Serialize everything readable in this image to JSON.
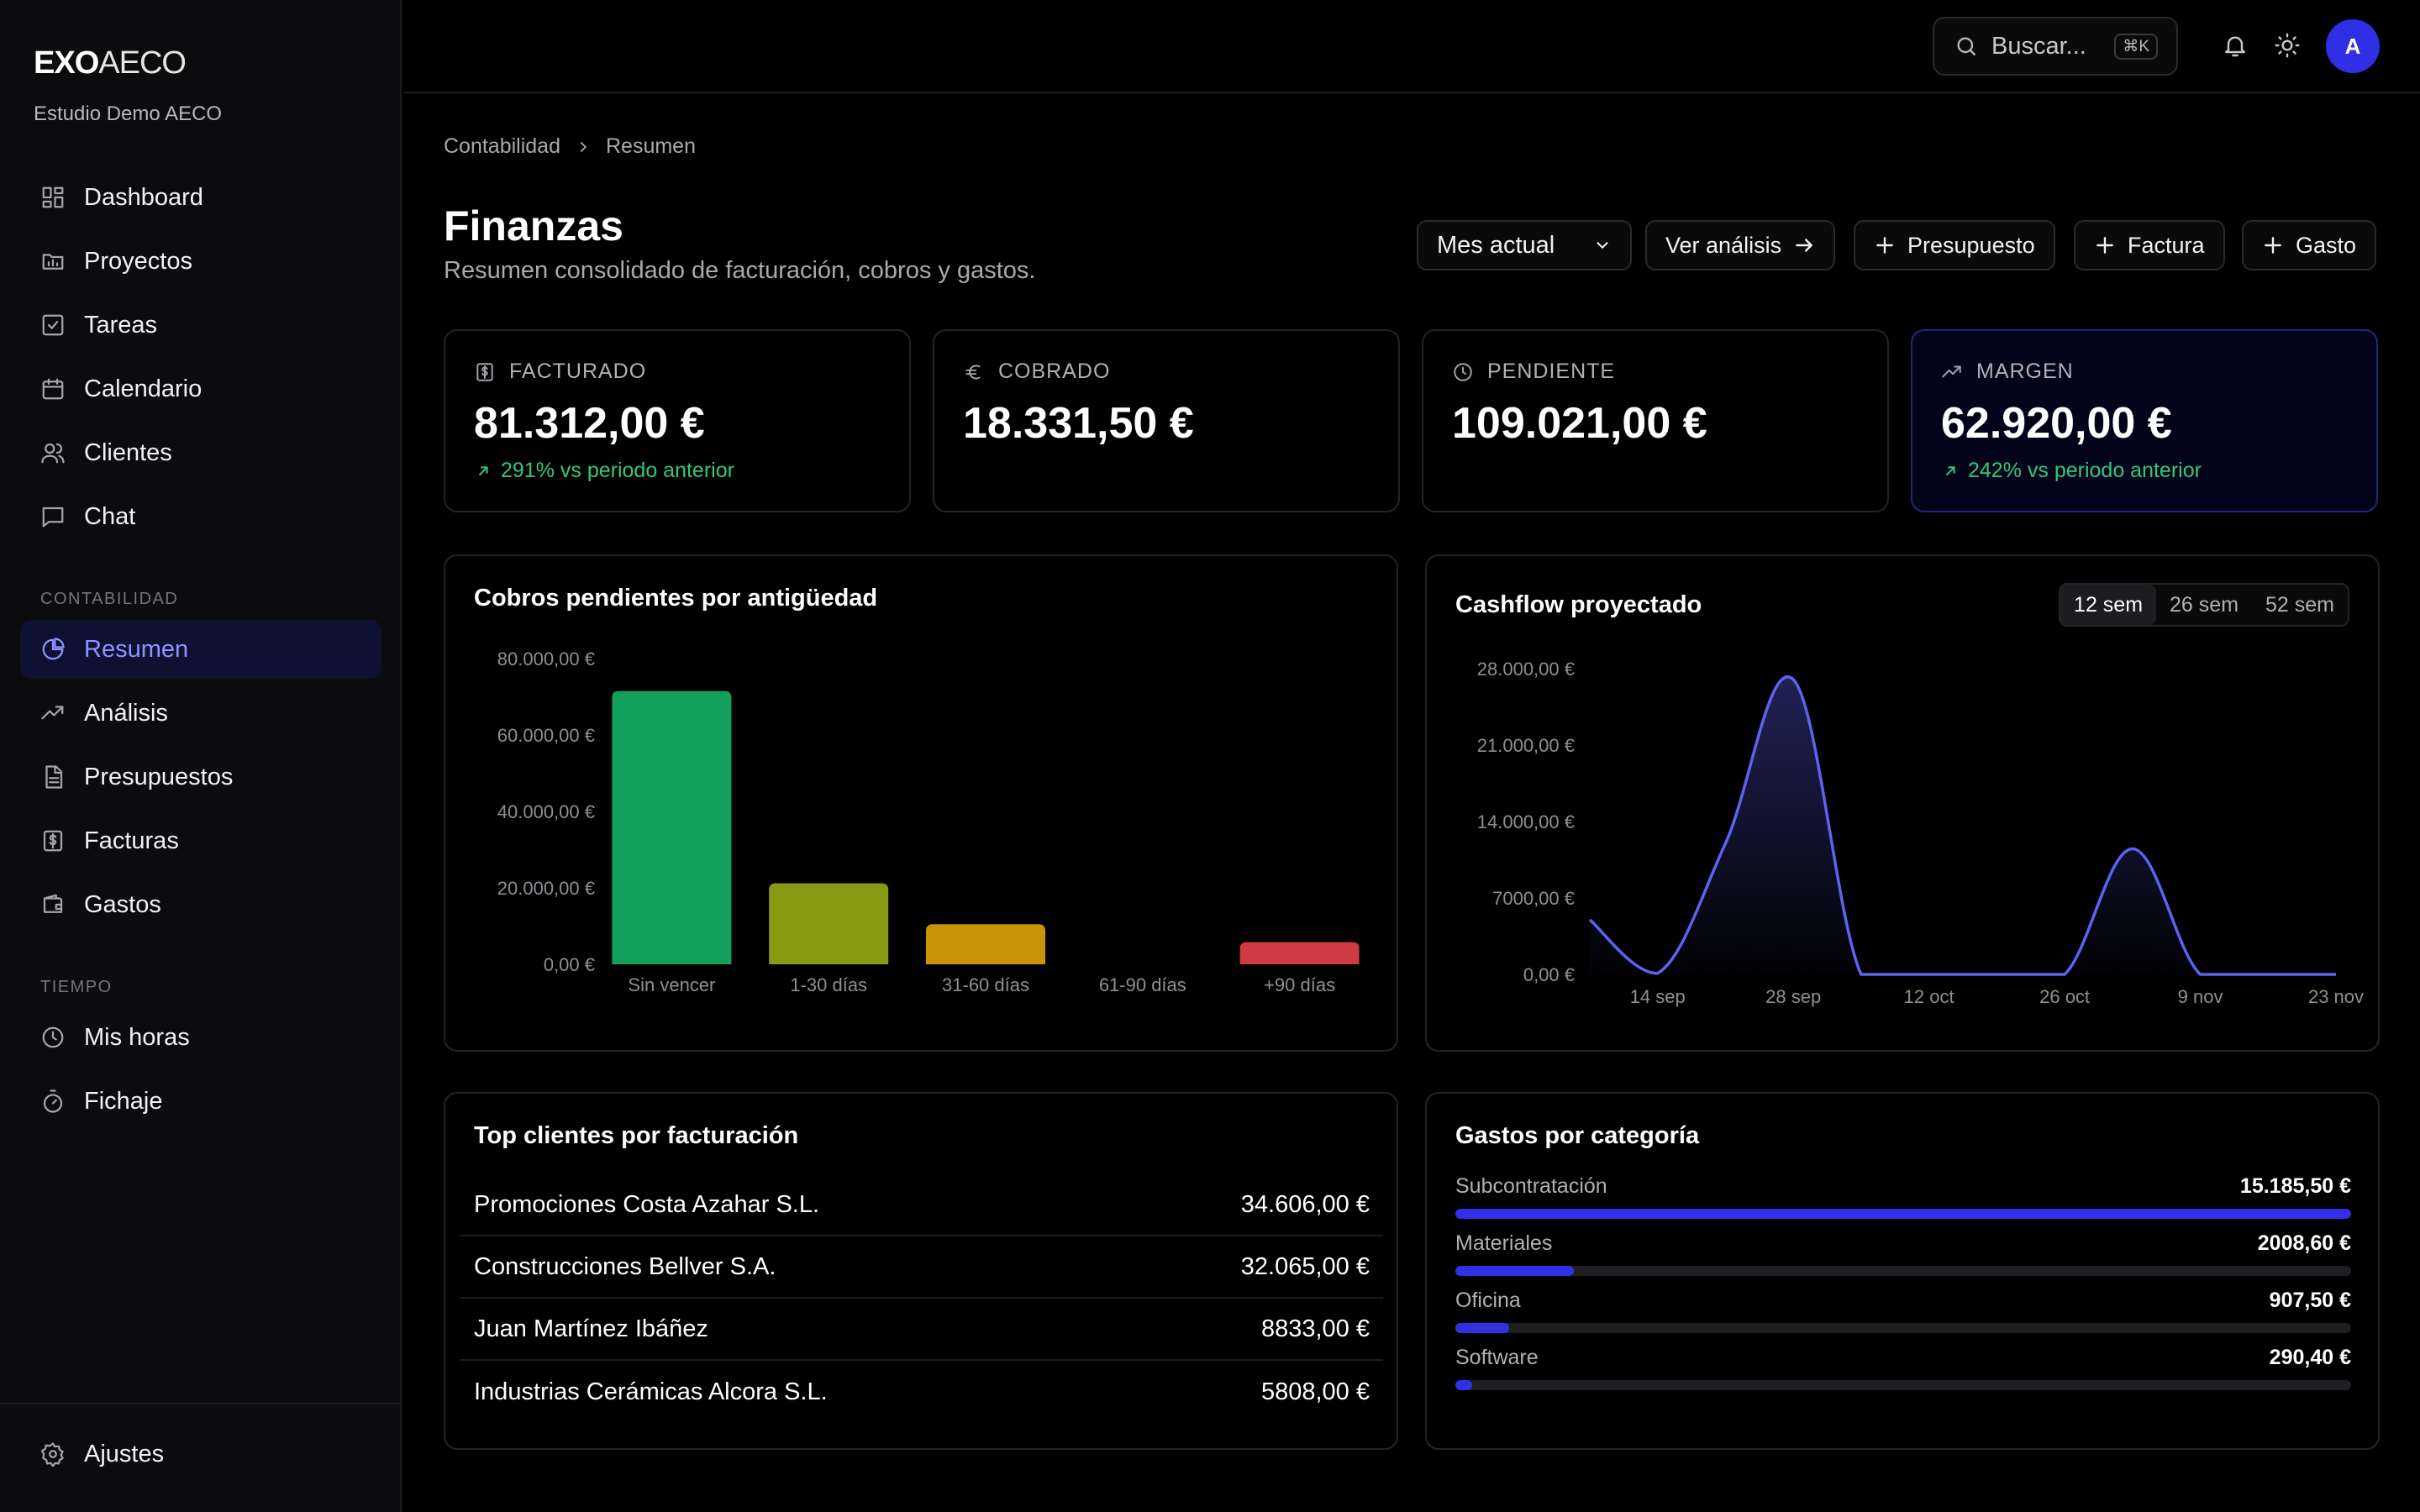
{
  "brand": {
    "part1": "EXO",
    "part2": "AECO",
    "org": "Estudio Demo AECO"
  },
  "nav_main": [
    {
      "label": "Dashboard",
      "icon": "dashboard-icon"
    },
    {
      "label": "Proyectos",
      "icon": "folder-icon"
    },
    {
      "label": "Tareas",
      "icon": "checkbox-icon"
    },
    {
      "label": "Calendario",
      "icon": "calendar-icon"
    },
    {
      "label": "Clientes",
      "icon": "users-icon"
    },
    {
      "label": "Chat",
      "icon": "chat-icon"
    }
  ],
  "sections": {
    "contabilidad": "CONTABILIDAD",
    "tiempo": "TIEMPO"
  },
  "nav_contabilidad": [
    {
      "label": "Resumen",
      "icon": "pie-icon",
      "active": true
    },
    {
      "label": "Análisis",
      "icon": "trend-icon"
    },
    {
      "label": "Presupuestos",
      "icon": "document-icon"
    },
    {
      "label": "Facturas",
      "icon": "invoice-icon"
    },
    {
      "label": "Gastos",
      "icon": "wallet-icon"
    }
  ],
  "nav_tiempo": [
    {
      "label": "Mis horas",
      "icon": "clock-icon"
    },
    {
      "label": "Fichaje",
      "icon": "stopwatch-icon"
    }
  ],
  "settings": {
    "label": "Ajustes",
    "icon": "gear-icon"
  },
  "topbar": {
    "search_placeholder": "Buscar...",
    "shortcut": "⌘K",
    "avatar": "A"
  },
  "breadcrumb": [
    "Contabilidad",
    "Resumen"
  ],
  "page": {
    "title": "Finanzas",
    "subtitle": "Resumen consolidado de facturación, cobros y gastos."
  },
  "actions": {
    "period": "Mes actual",
    "analysis": "Ver análisis",
    "budget": "Presupuesto",
    "invoice": "Factura",
    "expense": "Gasto"
  },
  "kpis": [
    {
      "label": "FACTURADO",
      "value": "81.312,00 €",
      "trend": "291% vs periodo anterior",
      "icon": "invoice-icon"
    },
    {
      "label": "COBRADO",
      "value": "18.331,50 €",
      "trend": "",
      "icon": "euro-icon"
    },
    {
      "label": "PENDIENTE",
      "value": "109.021,00 €",
      "trend": "",
      "icon": "clock-icon"
    },
    {
      "label": "MARGEN",
      "value": "62.920,00 €",
      "trend": "242% vs periodo anterior",
      "icon": "trend-icon"
    }
  ],
  "aging_card": {
    "title": "Cobros pendientes por antigüedad"
  },
  "cashflow_card": {
    "title": "Cashflow proyectado",
    "ranges": [
      "12 sem",
      "26 sem",
      "52 sem"
    ],
    "selected": "12 sem"
  },
  "chart_data": [
    {
      "type": "bar",
      "title": "Cobros pendientes por antigüedad",
      "categories": [
        "Sin vencer",
        "1-30 días",
        "31-60 días",
        "61-90 días",
        "+90 días"
      ],
      "values": [
        71500,
        21200,
        10500,
        0,
        5800
      ],
      "colors": [
        "#12a05c",
        "#879a12",
        "#c9940a",
        "#444444",
        "#cf3a45"
      ],
      "ylim": [
        0,
        80000
      ],
      "yticks": [
        0,
        20000,
        40000,
        60000,
        80000
      ],
      "ytick_labels": [
        "0,00 €",
        "20.000,00 €",
        "40.000,00 €",
        "60.000,00 €",
        "80.000,00 €"
      ]
    },
    {
      "type": "area",
      "title": "Cashflow proyectado",
      "x": [
        "7 sep",
        "14 sep",
        "21 sep",
        "28 sep",
        "5 oct",
        "12 oct",
        "19 oct",
        "26 oct",
        "2 nov",
        "9 nov",
        "16 nov",
        "23 nov"
      ],
      "xticks": [
        "14 sep",
        "28 sep",
        "12 oct",
        "26 oct",
        "9 nov",
        "23 nov"
      ],
      "values": [
        5000,
        100,
        12000,
        27000,
        0,
        0,
        0,
        0,
        11500,
        0,
        0,
        0
      ],
      "ylim": [
        0,
        28000
      ],
      "yticks": [
        0,
        7000,
        14000,
        21000,
        28000
      ],
      "ytick_labels": [
        "0,00 €",
        "7000,00 €",
        "14.000,00 €",
        "21.000,00 €",
        "28.000,00 €"
      ],
      "color": "#5b63f0"
    }
  ],
  "top_clients": {
    "title": "Top clientes por facturación",
    "rows": [
      {
        "name": "Promociones Costa Azahar S.L.",
        "amount": "34.606,00 €"
      },
      {
        "name": "Construcciones Bellver S.A.",
        "amount": "32.065,00 €"
      },
      {
        "name": "Juan Martínez Ibáñez",
        "amount": "8833,00 €"
      },
      {
        "name": "Industrias Cerámicas Alcora S.L.",
        "amount": "5808,00 €"
      }
    ]
  },
  "expenses": {
    "title": "Gastos por categoría",
    "items": [
      {
        "name": "Subcontratación",
        "amount": "15.185,50 €",
        "share": 1.0
      },
      {
        "name": "Materiales",
        "amount": "2008,60 €",
        "share": 0.132
      },
      {
        "name": "Oficina",
        "amount": "907,50 €",
        "share": 0.06
      },
      {
        "name": "Software",
        "amount": "290,40 €",
        "share": 0.019
      }
    ]
  }
}
